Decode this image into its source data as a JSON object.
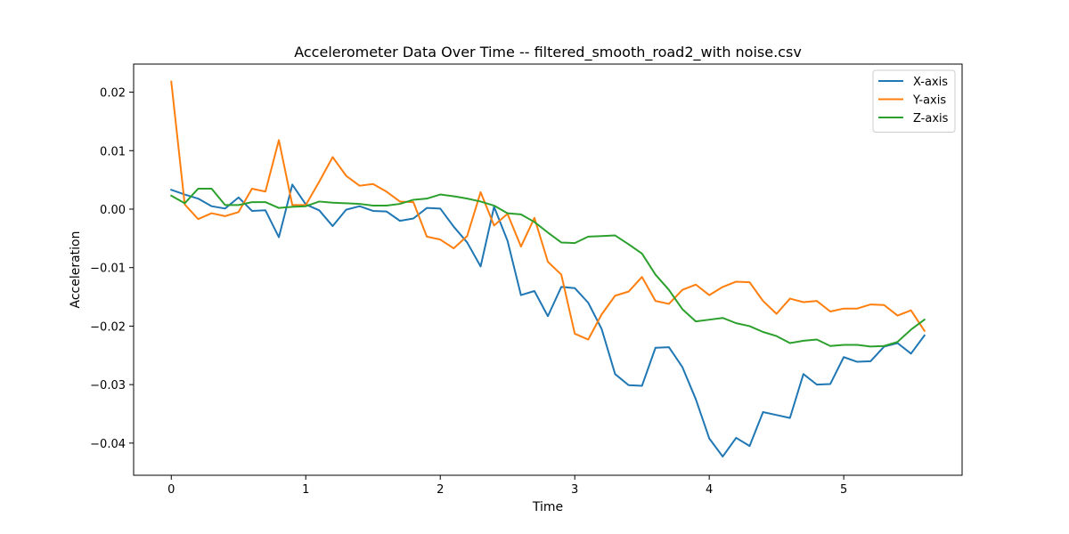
{
  "chart_data": {
    "type": "line",
    "title": "Accelerometer Data Over Time -- filtered_smooth_road2_with noise.csv",
    "xlabel": "Time",
    "ylabel": "Acceleration",
    "xlim": [
      -0.28,
      5.88
    ],
    "ylim": [
      -0.0455,
      0.0248
    ],
    "xticks": [
      0,
      1,
      2,
      3,
      4,
      5
    ],
    "yticks": [
      -0.04,
      -0.03,
      -0.02,
      -0.01,
      0.0,
      0.01,
      0.02
    ],
    "xtick_labels": [
      "0",
      "1",
      "2",
      "3",
      "4",
      "5"
    ],
    "ytick_labels": [
      "−0.04",
      "−0.03",
      "−0.02",
      "−0.01",
      "0.00",
      "0.01",
      "0.02"
    ],
    "grid": false,
    "legend_position": "top-right",
    "x": [
      0,
      0.1,
      0.2,
      0.3,
      0.4,
      0.5,
      0.6,
      0.7,
      0.8,
      0.9,
      1.0,
      1.1,
      1.2,
      1.3,
      1.4,
      1.5,
      1.6,
      1.7,
      1.8,
      1.9,
      2.0,
      2.1,
      2.2,
      2.3,
      2.4,
      2.5,
      2.6,
      2.7,
      2.8,
      2.9,
      3.0,
      3.1,
      3.2,
      3.3,
      3.4,
      3.5,
      3.6,
      3.7,
      3.8,
      3.9,
      4.0,
      4.1,
      4.2,
      4.3,
      4.4,
      4.5,
      4.6,
      4.7,
      4.8,
      4.9,
      5.0,
      5.1,
      5.2,
      5.3,
      5.4,
      5.5,
      5.6
    ],
    "series": [
      {
        "name": "X-axis",
        "color": "#1f77b4",
        "values": [
          0.0033,
          0.0025,
          0.0018,
          0.0005,
          0.0001,
          0.002,
          -0.0003,
          -0.0002,
          -0.0048,
          0.0042,
          0.0008,
          -0.0002,
          -0.0029,
          -0.0001,
          0.0005,
          -0.0003,
          -0.0004,
          -0.002,
          -0.0016,
          0.0002,
          0.0001,
          -0.003,
          -0.0057,
          -0.0098,
          0.0004,
          -0.0054,
          -0.0147,
          -0.014,
          -0.0183,
          -0.0133,
          -0.0135,
          -0.016,
          -0.0205,
          -0.0282,
          -0.0301,
          -0.0302,
          -0.0237,
          -0.0236,
          -0.027,
          -0.0325,
          -0.0392,
          -0.0423,
          -0.0391,
          -0.0405,
          -0.0347,
          -0.0352,
          -0.0357,
          -0.0282,
          -0.03,
          -0.0299,
          -0.0253,
          -0.0261,
          -0.026,
          -0.0235,
          -0.0229,
          -0.0247,
          -0.0216
        ]
      },
      {
        "name": "Y-axis",
        "color": "#ff7f0e",
        "values": [
          0.0218,
          0.0008,
          -0.0017,
          -0.0007,
          -0.0012,
          -0.0005,
          0.0035,
          0.003,
          0.0118,
          0.0007,
          0.0007,
          0.0047,
          0.0089,
          0.0057,
          0.004,
          0.0043,
          0.003,
          0.0013,
          0.0012,
          -0.0047,
          -0.0052,
          -0.0067,
          -0.0046,
          0.0029,
          -0.0028,
          -0.0008,
          -0.0064,
          -0.0015,
          -0.009,
          -0.0112,
          -0.0213,
          -0.0223,
          -0.018,
          -0.0148,
          -0.0141,
          -0.0116,
          -0.0157,
          -0.0162,
          -0.0138,
          -0.0129,
          -0.0147,
          -0.0133,
          -0.0124,
          -0.0125,
          -0.0157,
          -0.0179,
          -0.0153,
          -0.0159,
          -0.0157,
          -0.0175,
          -0.017,
          -0.017,
          -0.0163,
          -0.0164,
          -0.0182,
          -0.0173,
          -0.0208
        ]
      },
      {
        "name": "Z-axis",
        "color": "#2ca02c",
        "values": [
          0.0023,
          0.001,
          0.0035,
          0.0035,
          0.0007,
          0.0007,
          0.0012,
          0.0012,
          0.0002,
          0.0004,
          0.0005,
          0.0013,
          0.0011,
          0.001,
          0.0009,
          0.0006,
          0.0006,
          0.0009,
          0.0016,
          0.0018,
          0.0025,
          0.0022,
          0.0018,
          0.0013,
          0.0006,
          -0.0007,
          -0.0009,
          -0.0022,
          -0.004,
          -0.0057,
          -0.0058,
          -0.0047,
          -0.0046,
          -0.0045,
          -0.006,
          -0.0076,
          -0.0112,
          -0.0138,
          -0.0171,
          -0.0192,
          -0.0189,
          -0.0186,
          -0.0195,
          -0.02,
          -0.021,
          -0.0217,
          -0.0229,
          -0.0225,
          -0.0223,
          -0.0234,
          -0.0232,
          -0.0232,
          -0.0235,
          -0.0234,
          -0.0227,
          -0.0206,
          -0.0189
        ]
      }
    ]
  }
}
